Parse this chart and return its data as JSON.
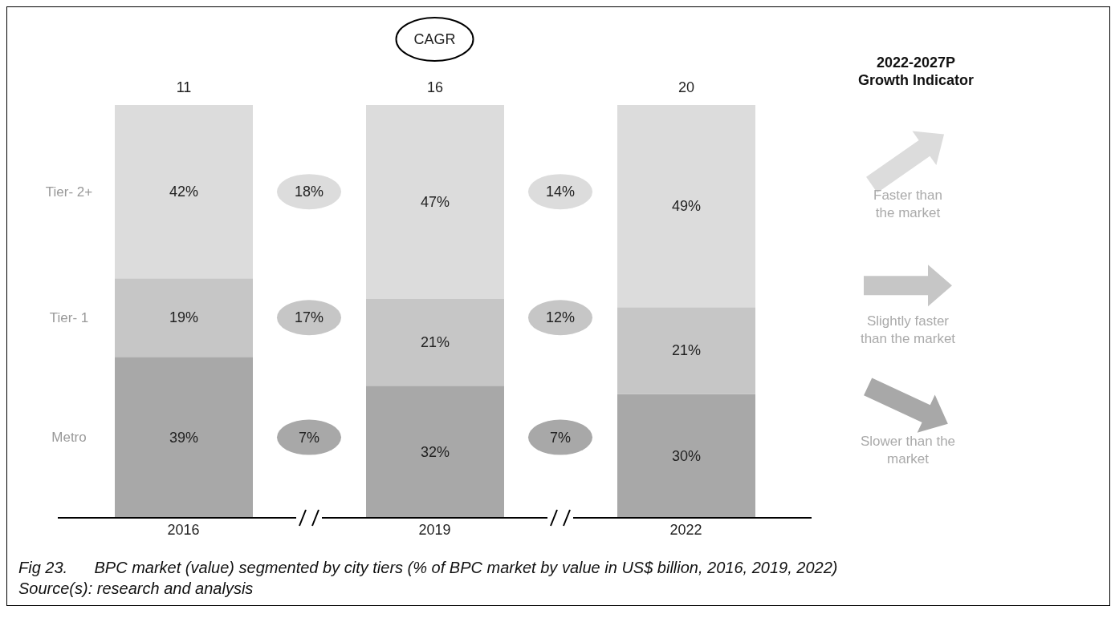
{
  "chart_data": {
    "type": "bar",
    "stacked": true,
    "title": "Fig 23.      BPC market (value) segmented by city tiers (% of BPC market by value in US$ billion, 2016, 2019, 2022)",
    "categories": [
      "2016",
      "2019",
      "2022"
    ],
    "series": [
      {
        "name": "Metro",
        "color": "#a8a8a8",
        "values": [
          39,
          32,
          30
        ],
        "value_labels": [
          "39%",
          "32%",
          "30%"
        ]
      },
      {
        "name": "Tier- 1",
        "color": "#c6c6c6",
        "values": [
          19,
          21,
          21
        ],
        "value_labels": [
          "19%",
          "21%",
          "21%"
        ]
      },
      {
        "name": "Tier- 2+",
        "color": "#dcdcdc",
        "values": [
          42,
          47,
          49
        ],
        "value_labels": [
          "42%",
          "47%",
          "49%"
        ]
      }
    ],
    "annotations": [
      "11",
      "16",
      "20",
      "CAGR",
      "7%",
      "17%",
      "18%",
      "7%",
      "12%",
      "14%",
      "2022-2027P\nGrowth Indicator",
      "Slower than the\nmarket",
      "Slightly faster\nthan the market",
      "Faster than\nthe market",
      "Source(s): research and analysis"
    ],
    "legend": false
  }
}
